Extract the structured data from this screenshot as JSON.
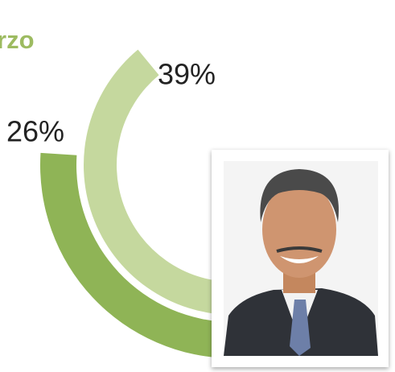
{
  "chart_data": {
    "type": "radial_bar",
    "title": "rzo",
    "values": [
      39,
      26
    ],
    "value_labels": [
      "39%",
      "26%"
    ],
    "colors": [
      "#c5d89e",
      "#8fb456"
    ],
    "title_color": "#9dbb61"
  }
}
